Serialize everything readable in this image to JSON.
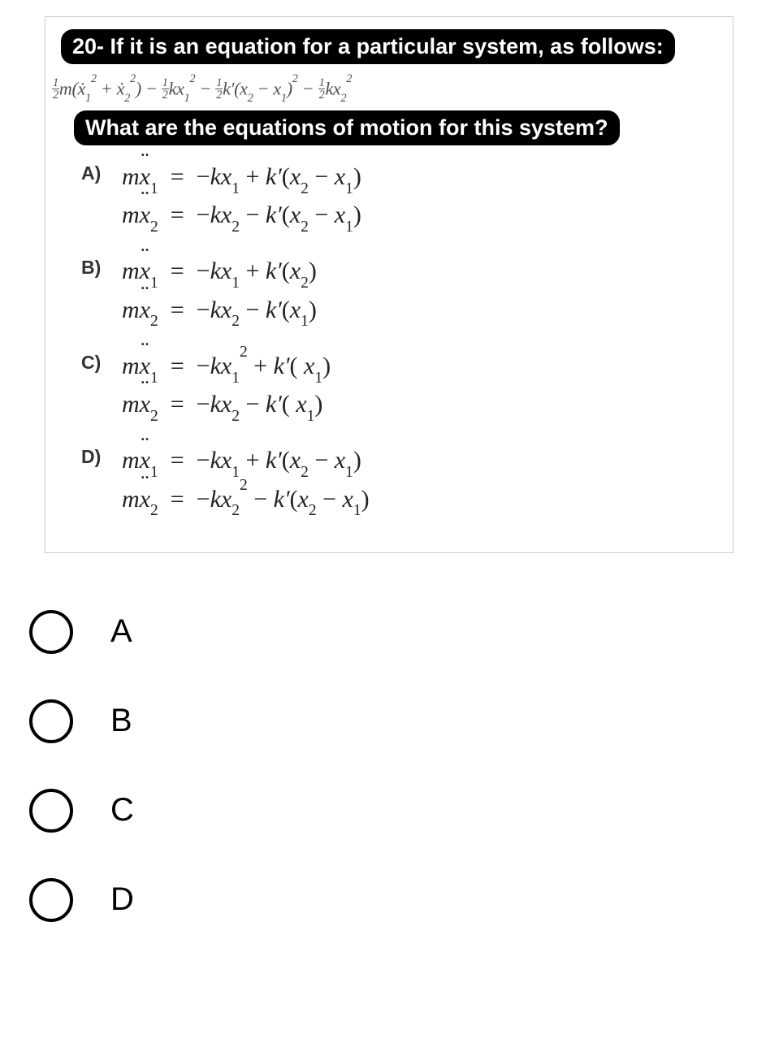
{
  "question_number": "20-",
  "header_text": "If it is an equation for a particular system, as follows:",
  "lagrangian_text": "½m(ẋ₁² + ẋ₂²) − ½kx₁² − ½k′(x₂ − x₁)² − ½kx₂²",
  "question_text": "What are the equations of motion for this system?",
  "choices": {
    "A": {
      "label": "A)",
      "line1_lhs": "mẍ₁",
      "line1_rhs": "−kx₁ + k′(x₂ − x₁)",
      "line2_lhs": "mẍ₂",
      "line2_rhs": "−kx₂ − k′(x₂ − x₁)"
    },
    "B": {
      "label": "B)",
      "line1_lhs": "mẍ₁",
      "line1_rhs": "−kx₁ + k′(x₂)",
      "line2_lhs": "mẍ₂",
      "line2_rhs": "−kx₂ − k′(x₁)"
    },
    "C": {
      "label": "C)",
      "line1_lhs": "mẍ₁",
      "line1_rhs": "−kx₁² + k′( x₁)",
      "line2_lhs": "mẍ₂",
      "line2_rhs": "−kx₂ − k′( x₁)"
    },
    "D": {
      "label": "D)",
      "line1_lhs": "mẍ₁",
      "line1_rhs": "−kx₁ + k′(x₂ − x₁)",
      "line2_lhs": "mẍ₂",
      "line2_rhs": "−kx₂² − k′(x₂ − x₁)"
    }
  },
  "responses": [
    "A",
    "B",
    "C",
    "D"
  ],
  "colors": {
    "background": "#ffffff",
    "header_bg": "#000000",
    "header_fg": "#ffffff",
    "math_color": "#222222",
    "label_color": "#333333",
    "radio_border": "#000000"
  },
  "fontsizes": {
    "header": 27,
    "lagrangian": 22,
    "opt_label": 23,
    "opt_math": 30,
    "response_label": 40
  }
}
